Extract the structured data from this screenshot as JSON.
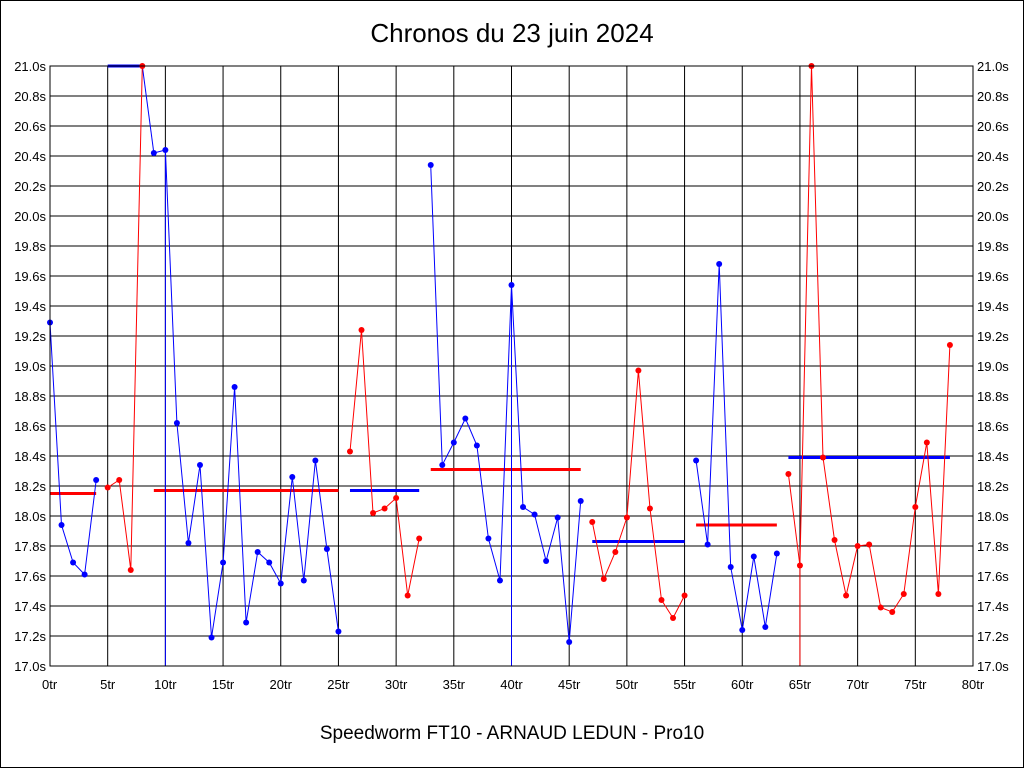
{
  "chart_data": {
    "type": "line",
    "title": "Chronos du 23 juin 2024",
    "subtitle": "Speedworm FT10 - ARNAUD LEDUN - Pro10",
    "x_unit": "tr",
    "y_unit": "s",
    "xlim": [
      0,
      80
    ],
    "ylim": [
      17.0,
      21.0
    ],
    "x_ticks": [
      0,
      5,
      10,
      15,
      20,
      25,
      30,
      35,
      40,
      45,
      50,
      55,
      60,
      65,
      70,
      75,
      80
    ],
    "y_ticks": [
      17.0,
      17.2,
      17.4,
      17.6,
      17.8,
      18.0,
      18.2,
      18.4,
      18.6,
      18.8,
      19.0,
      19.2,
      19.4,
      19.6,
      19.8,
      20.0,
      20.2,
      20.4,
      20.6,
      20.8,
      21.0
    ],
    "x_tick_labels": [
      "0tr",
      "5tr",
      "10tr",
      "15tr",
      "20tr",
      "25tr",
      "30tr",
      "35tr",
      "40tr",
      "45tr",
      "50tr",
      "55tr",
      "60tr",
      "65tr",
      "70tr",
      "75tr",
      "80tr"
    ],
    "y_tick_labels": [
      "17.0s",
      "17.2s",
      "17.4s",
      "17.6s",
      "17.8s",
      "18.0s",
      "18.2s",
      "18.4s",
      "18.6s",
      "18.8s",
      "19.0s",
      "19.2s",
      "19.4s",
      "19.6s",
      "19.8s",
      "20.0s",
      "20.2s",
      "20.4s",
      "20.6s",
      "20.8s",
      "21.0s"
    ],
    "grid": true,
    "colors": {
      "blue": "#0000ff",
      "red": "#ff0000",
      "grid": "#000000"
    },
    "segments": [
      {
        "color": "#0000ff",
        "points": [
          [
            0,
            19.29
          ],
          [
            1,
            17.94
          ],
          [
            2,
            17.69
          ],
          [
            3,
            17.61
          ],
          [
            4,
            18.24
          ]
        ]
      },
      {
        "color": "#ff0000",
        "points": [
          [
            5,
            18.19
          ],
          [
            6,
            18.24
          ],
          [
            7,
            17.64
          ],
          [
            8,
            21.0
          ]
        ]
      },
      {
        "color": "#0000ff",
        "points": [
          [
            9,
            20.42
          ],
          [
            10,
            20.44
          ],
          [
            11,
            18.62
          ],
          [
            12,
            17.82
          ],
          [
            13,
            18.34
          ],
          [
            14,
            17.19
          ],
          [
            15,
            17.69
          ],
          [
            16,
            18.86
          ],
          [
            17,
            17.29
          ],
          [
            18,
            17.76
          ],
          [
            19,
            17.69
          ],
          [
            20,
            17.55
          ],
          [
            21,
            18.26
          ],
          [
            22,
            17.57
          ],
          [
            23,
            18.37
          ],
          [
            24,
            17.78
          ],
          [
            25,
            17.23
          ]
        ]
      },
      {
        "color": "#ff0000",
        "points": [
          [
            26,
            18.43
          ],
          [
            27,
            19.24
          ],
          [
            28,
            18.02
          ],
          [
            29,
            18.05
          ],
          [
            30,
            18.12
          ],
          [
            31,
            17.47
          ],
          [
            32,
            17.85
          ]
        ]
      },
      {
        "color": "#0000ff",
        "points": [
          [
            33,
            20.34
          ],
          [
            34,
            18.34
          ],
          [
            35,
            18.49
          ],
          [
            36,
            18.65
          ],
          [
            37,
            18.47
          ],
          [
            38,
            17.85
          ],
          [
            39,
            17.57
          ],
          [
            40,
            19.54
          ],
          [
            41,
            18.06
          ],
          [
            42,
            18.01
          ],
          [
            43,
            17.7
          ],
          [
            44,
            17.99
          ],
          [
            45,
            17.16
          ],
          [
            46,
            18.1
          ]
        ]
      },
      {
        "color": "#ff0000",
        "points": [
          [
            47,
            17.96
          ],
          [
            48,
            17.58
          ],
          [
            49,
            17.76
          ],
          [
            50,
            17.99
          ],
          [
            51,
            18.97
          ],
          [
            52,
            18.05
          ],
          [
            53,
            17.44
          ],
          [
            54,
            17.32
          ],
          [
            55,
            17.47
          ]
        ]
      },
      {
        "color": "#0000ff",
        "points": [
          [
            56,
            18.37
          ],
          [
            57,
            17.81
          ],
          [
            58,
            19.68
          ],
          [
            59,
            17.66
          ],
          [
            60,
            17.24
          ],
          [
            61,
            17.73
          ],
          [
            62,
            17.26
          ],
          [
            63,
            17.75
          ]
        ]
      },
      {
        "color": "#ff0000",
        "points": [
          [
            64,
            18.28
          ],
          [
            65,
            17.67
          ],
          [
            66,
            21.0
          ],
          [
            67,
            18.39
          ],
          [
            68,
            17.84
          ],
          [
            69,
            17.47
          ],
          [
            70,
            17.8
          ],
          [
            71,
            17.81
          ],
          [
            72,
            17.39
          ],
          [
            73,
            17.36
          ],
          [
            74,
            17.48
          ],
          [
            75,
            18.06
          ],
          [
            76,
            18.49
          ],
          [
            77,
            17.48
          ],
          [
            78,
            19.14
          ]
        ]
      }
    ],
    "connectors": [
      {
        "color": "#0000ff",
        "from": [
          8,
          21.0
        ],
        "to": [
          9,
          20.42
        ]
      },
      {
        "color": "#0000ff",
        "from": [
          10,
          20.44
        ],
        "to": [
          10,
          17.0
        ]
      },
      {
        "color": "#0000ff",
        "from": [
          40,
          19.54
        ],
        "to": [
          40,
          17.0
        ]
      },
      {
        "color": "#ff0000",
        "from": [
          65,
          17.67
        ],
        "to": [
          65,
          17.0
        ]
      }
    ],
    "averages": [
      {
        "color": "#ff0000",
        "x": [
          0,
          4
        ],
        "y": 18.15
      },
      {
        "color": "#0000ff",
        "x": [
          5,
          8
        ],
        "y": 21.0
      },
      {
        "color": "#ff0000",
        "x": [
          9,
          25
        ],
        "y": 18.17
      },
      {
        "color": "#0000ff",
        "x": [
          26,
          32
        ],
        "y": 18.17
      },
      {
        "color": "#ff0000",
        "x": [
          33,
          46
        ],
        "y": 18.31
      },
      {
        "color": "#0000ff",
        "x": [
          47,
          55
        ],
        "y": 17.83
      },
      {
        "color": "#ff0000",
        "x": [
          56,
          63
        ],
        "y": 17.94
      },
      {
        "color": "#0000ff",
        "x": [
          64,
          78
        ],
        "y": 18.39
      }
    ]
  }
}
